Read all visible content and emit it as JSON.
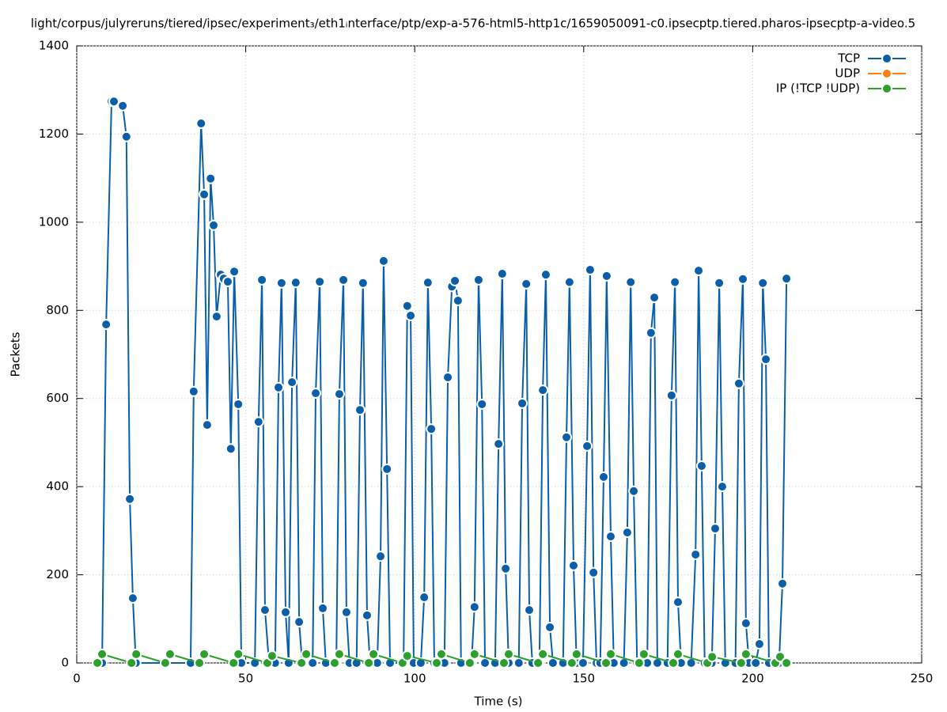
{
  "chart_data": {
    "type": "line",
    "title": "light/corpus/julyreruns/tiered/ipsec/experiment₃/eth1ᵢnterface/ptp/exp-a-576-html5-http1c/1659050091-c0.ipsecptp.tiered.pharos-ipsecptp-a-video.5",
    "xlabel": "Time (s)",
    "ylabel": "Packets",
    "xlim": [
      0,
      250
    ],
    "ylim": [
      0,
      1400
    ],
    "xticks": [
      0,
      50,
      100,
      150,
      200,
      250
    ],
    "yticks": [
      0,
      200,
      400,
      600,
      800,
      1000,
      1200,
      1400
    ],
    "grid": true,
    "legend": "top-right",
    "series": [
      {
        "name": "TCP",
        "color": "#0a5fa8",
        "x": [
          7.5,
          8.7,
          10.3,
          11.0,
          13.6,
          14.7,
          15.7,
          16.6,
          17.5,
          33.7,
          34.6,
          36.8,
          37.7,
          38.6,
          39.6,
          40.5,
          41.4,
          42.6,
          43.5,
          44.7,
          45.6,
          46.6,
          47.8,
          48.7,
          52.7,
          53.8,
          54.8,
          55.7,
          56.9,
          58.7,
          59.7,
          60.6,
          61.8,
          62.7,
          63.7,
          64.8,
          65.8,
          66.7,
          69.8,
          70.7,
          71.9,
          72.8,
          73.7,
          76.8,
          77.7,
          78.9,
          79.8,
          80.7,
          82.8,
          83.8,
          84.7,
          85.9,
          86.8,
          88.9,
          89.9,
          90.8,
          91.8,
          92.7,
          96.7,
          97.8,
          98.8,
          99.7,
          101.8,
          102.8,
          103.9,
          104.9,
          105.8,
          108.8,
          109.8,
          111.0,
          111.9,
          112.8,
          113.7,
          116.8,
          117.7,
          118.9,
          119.9,
          120.8,
          123.8,
          124.8,
          125.9,
          126.9,
          127.8,
          130.8,
          131.8,
          133.0,
          133.9,
          134.8,
          136.9,
          137.9,
          138.8,
          140.0,
          140.9,
          143.9,
          144.9,
          145.8,
          147.0,
          147.9,
          149.8,
          151.0,
          151.9,
          152.9,
          153.8,
          154.9,
          155.9,
          156.8,
          158.0,
          158.9,
          161.9,
          162.9,
          163.9,
          164.8,
          165.8,
          168.8,
          169.9,
          170.9,
          171.8,
          174.8,
          176.0,
          177.0,
          177.9,
          178.8,
          181.8,
          183.1,
          184.0,
          184.9,
          185.8,
          187.9,
          188.9,
          190.1,
          191.0,
          191.9,
          194.9,
          195.9,
          197.1,
          198.0,
          198.9,
          200.9,
          202.0,
          203.0,
          203.9,
          204.8,
          207.8,
          208.8,
          210.0
        ],
        "values": [
          0,
          768,
          1274,
          1274,
          1264,
          1194,
          372,
          147,
          0,
          0,
          616,
          1224,
          1063,
          540,
          1099,
          993,
          786,
          881,
          872,
          865,
          486,
          888,
          587,
          0,
          0,
          547,
          869,
          120,
          0,
          0,
          625,
          862,
          115,
          0,
          637,
          863,
          93,
          0,
          0,
          612,
          865,
          124,
          0,
          0,
          610,
          869,
          115,
          0,
          0,
          574,
          862,
          108,
          0,
          0,
          242,
          912,
          440,
          0,
          0,
          810,
          788,
          0,
          0,
          149,
          863,
          531,
          0,
          0,
          648,
          854,
          867,
          822,
          0,
          0,
          127,
          869,
          587,
          0,
          0,
          497,
          883,
          214,
          0,
          0,
          589,
          860,
          120,
          0,
          0,
          619,
          881,
          81,
          0,
          0,
          512,
          864,
          221,
          0,
          0,
          492,
          892,
          205,
          0,
          0,
          422,
          878,
          287,
          0,
          0,
          296,
          864,
          390,
          0,
          0,
          749,
          829,
          0,
          0,
          607,
          864,
          138,
          0,
          0,
          246,
          890,
          447,
          0,
          0,
          305,
          862,
          400,
          0,
          0,
          634,
          871,
          90,
          0,
          0,
          43,
          862,
          689,
          0,
          0,
          180,
          872
        ]
      },
      {
        "name": "UDP",
        "color": "#ff7f0e",
        "x": [],
        "values": []
      },
      {
        "name": "IP (!TCP  !UDP)",
        "color": "#2ca02c",
        "x": [
          6.1,
          7.5,
          16.2,
          17.6,
          26.2,
          27.6,
          36.3,
          37.7,
          46.4,
          47.8,
          56.4,
          57.8,
          66.5,
          67.9,
          76.3,
          77.7,
          86.4,
          87.8,
          96.4,
          97.8,
          106.5,
          107.9,
          116.3,
          117.7,
          126.4,
          127.8,
          136.5,
          137.9,
          146.5,
          147.9,
          156.6,
          158.0,
          166.4,
          167.8,
          176.5,
          177.9,
          186.6,
          188.0,
          196.6,
          198.0,
          206.7,
          208.1,
          210.0
        ],
        "values": [
          0,
          20,
          0,
          20,
          0,
          20,
          0,
          20,
          0,
          20,
          0,
          16,
          0,
          20,
          0,
          20,
          0,
          20,
          0,
          16,
          0,
          20,
          0,
          20,
          0,
          20,
          0,
          20,
          0,
          20,
          0,
          20,
          0,
          20,
          0,
          20,
          0,
          14,
          0,
          20,
          0,
          14,
          0
        ]
      }
    ]
  }
}
